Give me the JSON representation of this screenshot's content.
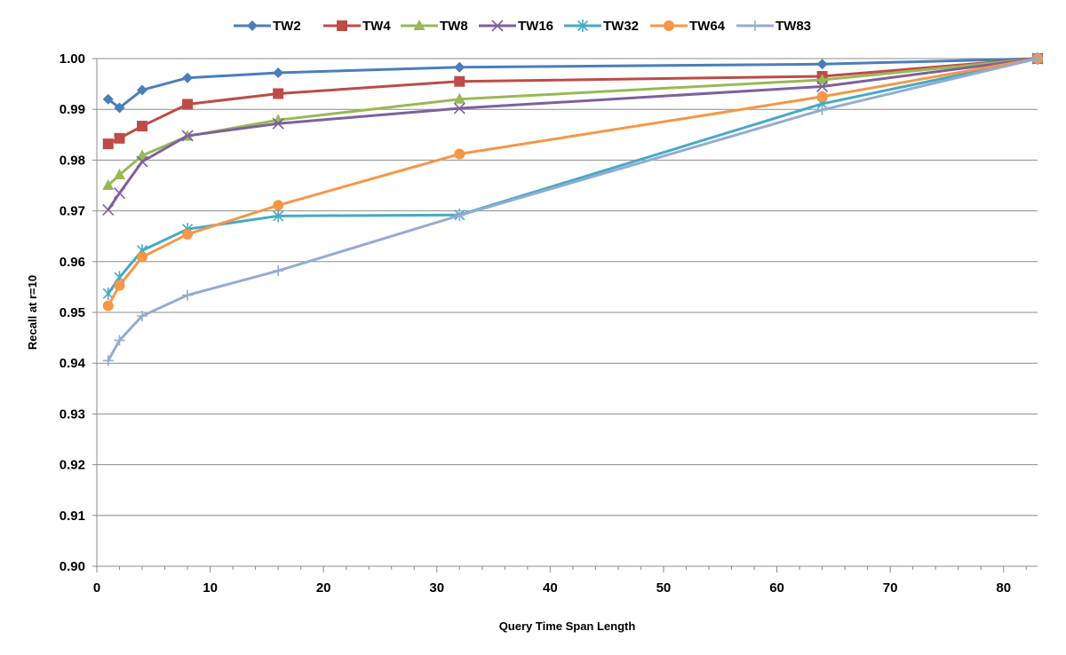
{
  "chart_data": {
    "type": "line",
    "title": "",
    "xlabel": "Query Time Span Length",
    "ylabel": "Recall at r=10",
    "xlim": [
      0,
      83
    ],
    "ylim": [
      0.9,
      1.0
    ],
    "x_ticks": [
      0,
      10,
      20,
      30,
      40,
      50,
      60,
      70,
      80
    ],
    "x_tick_labels": [
      "0",
      "10",
      "20",
      "30",
      "40",
      "50",
      "60",
      "70",
      "80"
    ],
    "y_ticks": [
      0.9,
      0.91,
      0.92,
      0.93,
      0.94,
      0.95,
      0.96,
      0.97,
      0.98,
      0.99,
      1.0
    ],
    "y_tick_labels": [
      "0.90",
      "0.91",
      "0.92",
      "0.93",
      "0.94",
      "0.95",
      "0.96",
      "0.97",
      "0.98",
      "0.99",
      "1.00"
    ],
    "grid": "horizontal",
    "legend_position": "top",
    "x": [
      1,
      2,
      4,
      8,
      16,
      32,
      64,
      83
    ],
    "series": [
      {
        "name": "TW2",
        "color": "#4A7EBB",
        "marker": "diamond",
        "values": [
          0.992,
          0.9903,
          0.9938,
          0.9962,
          0.9972,
          0.9983,
          0.9989,
          1.0
        ]
      },
      {
        "name": "TW4",
        "color": "#BE4B48",
        "marker": "square",
        "values": [
          0.9832,
          0.9843,
          0.9867,
          0.991,
          0.9931,
          0.9955,
          0.9965,
          1.0
        ]
      },
      {
        "name": "TW8",
        "color": "#98B954",
        "marker": "triangle",
        "values": [
          0.975,
          0.9771,
          0.9809,
          0.9847,
          0.9879,
          0.992,
          0.9958,
          1.0
        ]
      },
      {
        "name": "TW16",
        "color": "#7D60A0",
        "marker": "x",
        "values": [
          0.9702,
          0.9735,
          0.9797,
          0.9848,
          0.9872,
          0.9902,
          0.9945,
          1.0
        ]
      },
      {
        "name": "TW32",
        "color": "#46AAC5",
        "marker": "star",
        "values": [
          0.9537,
          0.9569,
          0.9622,
          0.9664,
          0.969,
          0.9692,
          0.9911,
          1.0
        ]
      },
      {
        "name": "TW64",
        "color": "#F79646",
        "marker": "circle",
        "values": [
          0.9513,
          0.9553,
          0.9609,
          0.9654,
          0.9711,
          0.9812,
          0.9925,
          1.0
        ]
      },
      {
        "name": "TW83",
        "color": "#95ABD3",
        "marker": "plus",
        "values": [
          0.9405,
          0.9445,
          0.9493,
          0.9534,
          0.9582,
          0.9691,
          0.9899,
          1.0
        ]
      }
    ]
  }
}
